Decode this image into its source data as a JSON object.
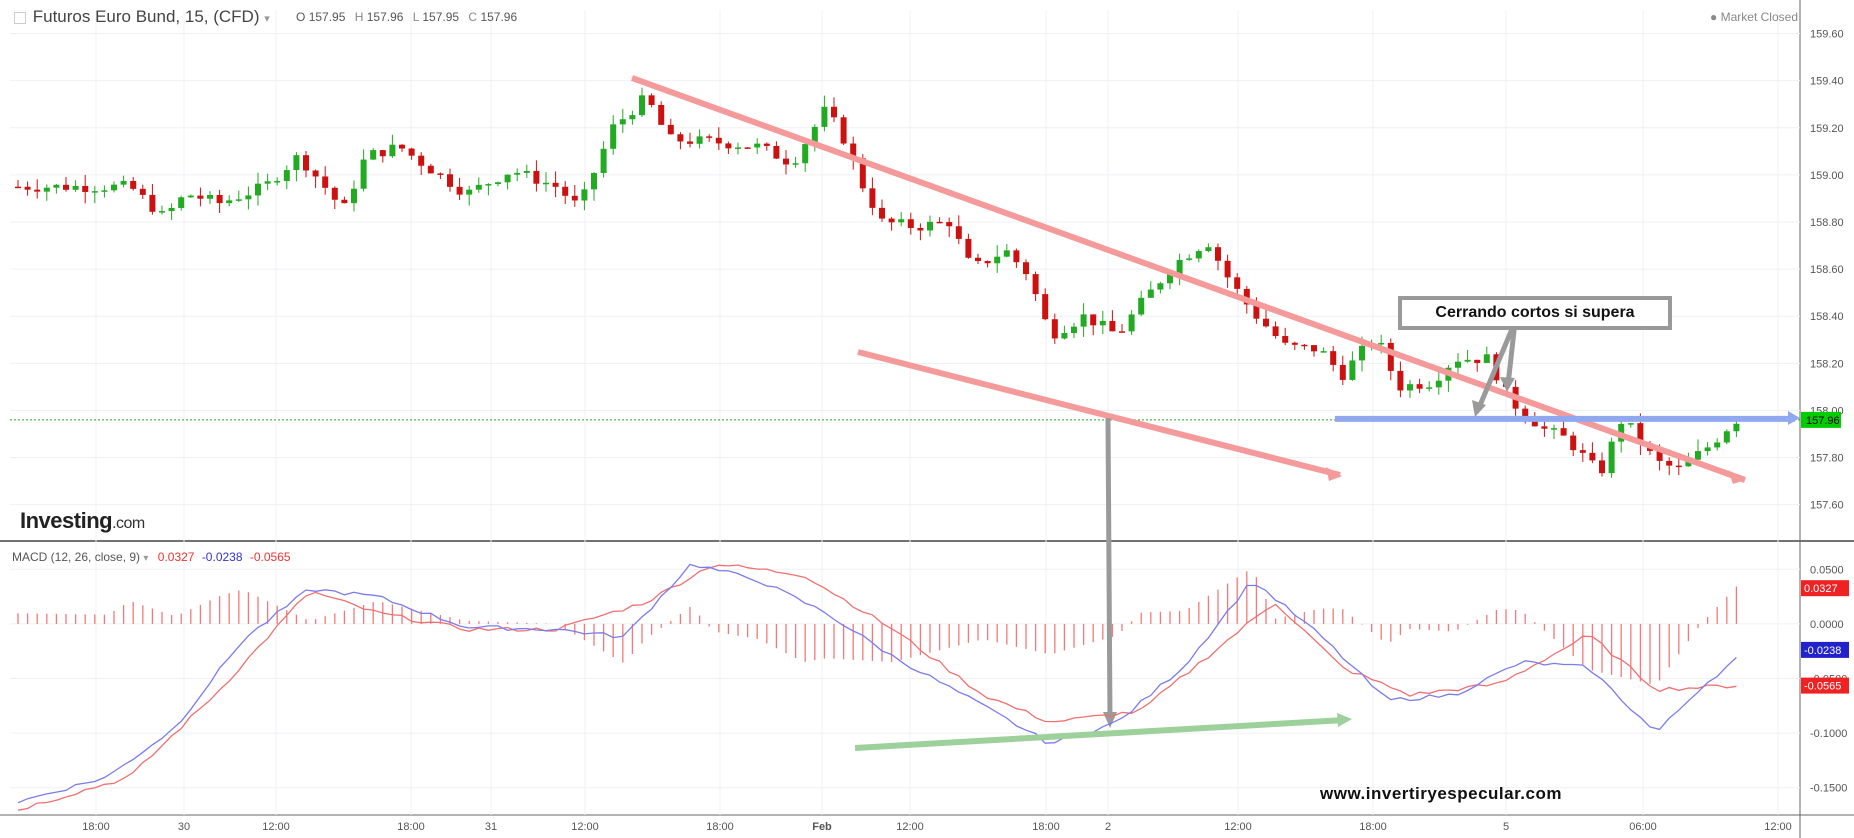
{
  "header": {
    "title": "Futuros Euro Bund, 15, (CFD)",
    "ohlc": [
      {
        "k": "O",
        "v": "157.95"
      },
      {
        "k": "H",
        "v": "157.96"
      },
      {
        "k": "L",
        "v": "157.95"
      },
      {
        "k": "C",
        "v": "157.96"
      }
    ],
    "status": "Market Closed"
  },
  "brand": {
    "name": "Investing",
    "suffix": ".com"
  },
  "macd_header": {
    "label": "MACD (12, 26, close, 9)",
    "v1": "0.0327",
    "v2": "-0.0238",
    "v3": "-0.0565"
  },
  "annotation": "Cerrando cortos si supera",
  "watermark": "www.invertiryespecular.com",
  "colors": {
    "up": "#22aa22",
    "down": "#cc1111",
    "trend": "#f59a9a",
    "level": "#8fa8f0",
    "green_trend": "#9dd09a",
    "arrow": "#9a9a9a",
    "macd": "#7b7bec",
    "signal": "#f07070",
    "hist": "#f07a7a"
  },
  "chart_data": [
    {
      "type": "candlestick",
      "title": "Futuros Euro Bund, 15, (CFD)",
      "ylim": [
        157.45,
        159.7
      ],
      "y_ticks": [
        "159.60",
        "159.40",
        "159.20",
        "159.00",
        "158.80",
        "158.60",
        "158.40",
        "158.20",
        "158.00",
        "157.80",
        "157.60"
      ],
      "last_price": "157.96",
      "x_ticks": [
        "18:00",
        "30",
        "12:00",
        "18:00",
        "31",
        "12:00",
        "18:00",
        "Feb",
        "12:00",
        "18:00",
        "2",
        "12:00",
        "18:00",
        "5",
        "06:00",
        "12:00"
      ],
      "close_path": [
        [
          0,
          158.95
        ],
        [
          10,
          158.95
        ],
        [
          13,
          158.82
        ],
        [
          15,
          158.92
        ],
        [
          18,
          158.88
        ],
        [
          22,
          158.95
        ],
        [
          25,
          159.08
        ],
        [
          27,
          158.97
        ],
        [
          29,
          158.85
        ],
        [
          31,
          159.08
        ],
        [
          34,
          159.12
        ],
        [
          36,
          159.05
        ],
        [
          40,
          158.92
        ],
        [
          44,
          159.02
        ],
        [
          48,
          158.95
        ],
        [
          50,
          158.86
        ],
        [
          53,
          159.2
        ],
        [
          56,
          159.33
        ],
        [
          58,
          159.15
        ],
        [
          62,
          159.14
        ],
        [
          66,
          159.12
        ],
        [
          69,
          159.05
        ],
        [
          72,
          159.28
        ],
        [
          74,
          159.12
        ],
        [
          75,
          158.98
        ],
        [
          77,
          158.8
        ],
        [
          80,
          158.78
        ],
        [
          83,
          158.8
        ],
        [
          85,
          158.6
        ],
        [
          88,
          158.68
        ],
        [
          90,
          158.58
        ],
        [
          92,
          158.32
        ],
        [
          95,
          158.4
        ],
        [
          98,
          158.32
        ],
        [
          100,
          158.45
        ],
        [
          103,
          158.62
        ],
        [
          106,
          158.72
        ],
        [
          108,
          158.55
        ],
        [
          110,
          158.42
        ],
        [
          113,
          158.27
        ],
        [
          116,
          158.26
        ],
        [
          118,
          158.15
        ],
        [
          121,
          158.32
        ],
        [
          123,
          158.1
        ],
        [
          126,
          158.12
        ],
        [
          128,
          158.22
        ],
        [
          131,
          158.22
        ],
        [
          133,
          158.04
        ],
        [
          136,
          157.92
        ],
        [
          138,
          157.88
        ],
        [
          141,
          157.73
        ],
        [
          143,
          157.97
        ],
        [
          146,
          157.78
        ],
        [
          148,
          157.75
        ],
        [
          151,
          157.86
        ],
        [
          153,
          157.96
        ]
      ]
    },
    {
      "type": "line",
      "title": "MACD (12, 26, close, 9)",
      "ylim": [
        -0.175,
        0.075
      ],
      "y_ticks": [
        "0.0500",
        "0.0000",
        "-0.0500",
        "-0.1000",
        "-0.1500"
      ],
      "current_values": {
        "histogram": "0.0327",
        "macd": "-0.0238",
        "signal": "-0.0565"
      },
      "series": [
        {
          "name": "MACD",
          "points": [
            [
              0,
              -0.163
            ],
            [
              8,
              -0.14
            ],
            [
              14,
              -0.095
            ],
            [
              20,
              -0.015
            ],
            [
              26,
              0.032
            ],
            [
              32,
              0.025
            ],
            [
              40,
              -0.003
            ],
            [
              48,
              -0.005
            ],
            [
              54,
              -0.012
            ],
            [
              60,
              0.055
            ],
            [
              66,
              0.04
            ],
            [
              72,
              0.01
            ],
            [
              78,
              -0.03
            ],
            [
              86,
              -0.075
            ],
            [
              92,
              -0.11
            ],
            [
              98,
              -0.09
            ],
            [
              104,
              -0.038
            ],
            [
              110,
              0.04
            ],
            [
              116,
              -0.01
            ],
            [
              122,
              -0.07
            ],
            [
              128,
              -0.065
            ],
            [
              134,
              -0.035
            ],
            [
              140,
              -0.04
            ],
            [
              146,
              -0.1
            ],
            [
              150,
              -0.058
            ],
            [
              154,
              -0.025
            ]
          ]
        },
        {
          "name": "Signal",
          "points": [
            [
              0,
              -0.17
            ],
            [
              10,
              -0.14
            ],
            [
              18,
              -0.06
            ],
            [
              26,
              0.03
            ],
            [
              32,
              0.01
            ],
            [
              40,
              -0.005
            ],
            [
              48,
              -0.005
            ],
            [
              56,
              0.02
            ],
            [
              62,
              0.055
            ],
            [
              70,
              0.045
            ],
            [
              78,
              -0.005
            ],
            [
              86,
              -0.065
            ],
            [
              92,
              -0.09
            ],
            [
              100,
              -0.08
            ],
            [
              106,
              -0.03
            ],
            [
              112,
              0.02
            ],
            [
              118,
              -0.04
            ],
            [
              124,
              -0.065
            ],
            [
              132,
              -0.055
            ],
            [
              140,
              -0.01
            ],
            [
              146,
              -0.06
            ],
            [
              154,
              -0.056
            ]
          ]
        }
      ]
    }
  ]
}
